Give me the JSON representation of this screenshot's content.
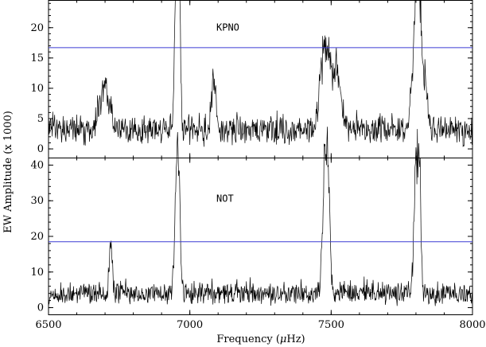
{
  "chart_data": {
    "type": "line",
    "shared_x": {
      "label_prefix": "Frequency (",
      "label_unit_greek": "μ",
      "label_unit_rest": "Hz)",
      "xlim": [
        6500,
        8000
      ],
      "ticks": [
        6500,
        7000,
        7500,
        8000
      ],
      "tick_labels": [
        "6500",
        "7000",
        "7500",
        "8000"
      ]
    },
    "ylabel": "EW Amplitude (x 1000)",
    "panels": [
      {
        "name": "KPNO",
        "ylim": [
          -1.5,
          24.5
        ],
        "yticks": [
          0,
          5,
          10,
          15,
          20
        ],
        "ytick_labels": [
          "0",
          "5",
          "10",
          "15",
          "20"
        ],
        "threshold": 16.7,
        "baseline": 3.5,
        "noise": 3.2,
        "peaks": [
          {
            "x": 6955,
            "amp": 23.5,
            "width": 6
          },
          {
            "x": 6962,
            "amp": 21.0,
            "width": 5
          },
          {
            "x": 6950,
            "amp": 15.0,
            "width": 5
          },
          {
            "x": 7085,
            "amp": 10.5,
            "width": 8
          },
          {
            "x": 6700,
            "amp": 8.5,
            "width": 20
          },
          {
            "x": 7470,
            "amp": 14.5,
            "width": 12
          },
          {
            "x": 7490,
            "amp": 13.0,
            "width": 10
          },
          {
            "x": 7520,
            "amp": 11.0,
            "width": 14
          },
          {
            "x": 7800,
            "amp": 22.8,
            "width": 5
          },
          {
            "x": 7808,
            "amp": 21.5,
            "width": 5
          },
          {
            "x": 7815,
            "amp": 17.5,
            "width": 6
          },
          {
            "x": 7790,
            "amp": 12.0,
            "width": 8
          },
          {
            "x": 7830,
            "amp": 11.0,
            "width": 10
          }
        ],
        "seed": 17
      },
      {
        "name": "NOT",
        "ylim": [
          -2,
          42
        ],
        "yticks": [
          0,
          10,
          20,
          30,
          40
        ],
        "ytick_labels": [
          "0",
          "10",
          "20",
          "30",
          "40"
        ],
        "threshold": 18.5,
        "baseline": 4.5,
        "noise": 4.2,
        "peaks": [
          {
            "x": 6955,
            "amp": 35.0,
            "width": 5
          },
          {
            "x": 6962,
            "amp": 30.0,
            "width": 5
          },
          {
            "x": 6948,
            "amp": 20.0,
            "width": 5
          },
          {
            "x": 6720,
            "amp": 15.5,
            "width": 6
          },
          {
            "x": 7478,
            "amp": 36.0,
            "width": 5
          },
          {
            "x": 7487,
            "amp": 39.0,
            "width": 5
          },
          {
            "x": 7470,
            "amp": 19.0,
            "width": 5
          },
          {
            "x": 7495,
            "amp": 16.0,
            "width": 5
          },
          {
            "x": 7800,
            "amp": 33.0,
            "width": 4
          },
          {
            "x": 7808,
            "amp": 39.5,
            "width": 4
          },
          {
            "x": 7815,
            "amp": 30.0,
            "width": 4
          },
          {
            "x": 7793,
            "amp": 18.0,
            "width": 5
          }
        ],
        "seed": 42
      }
    ]
  }
}
